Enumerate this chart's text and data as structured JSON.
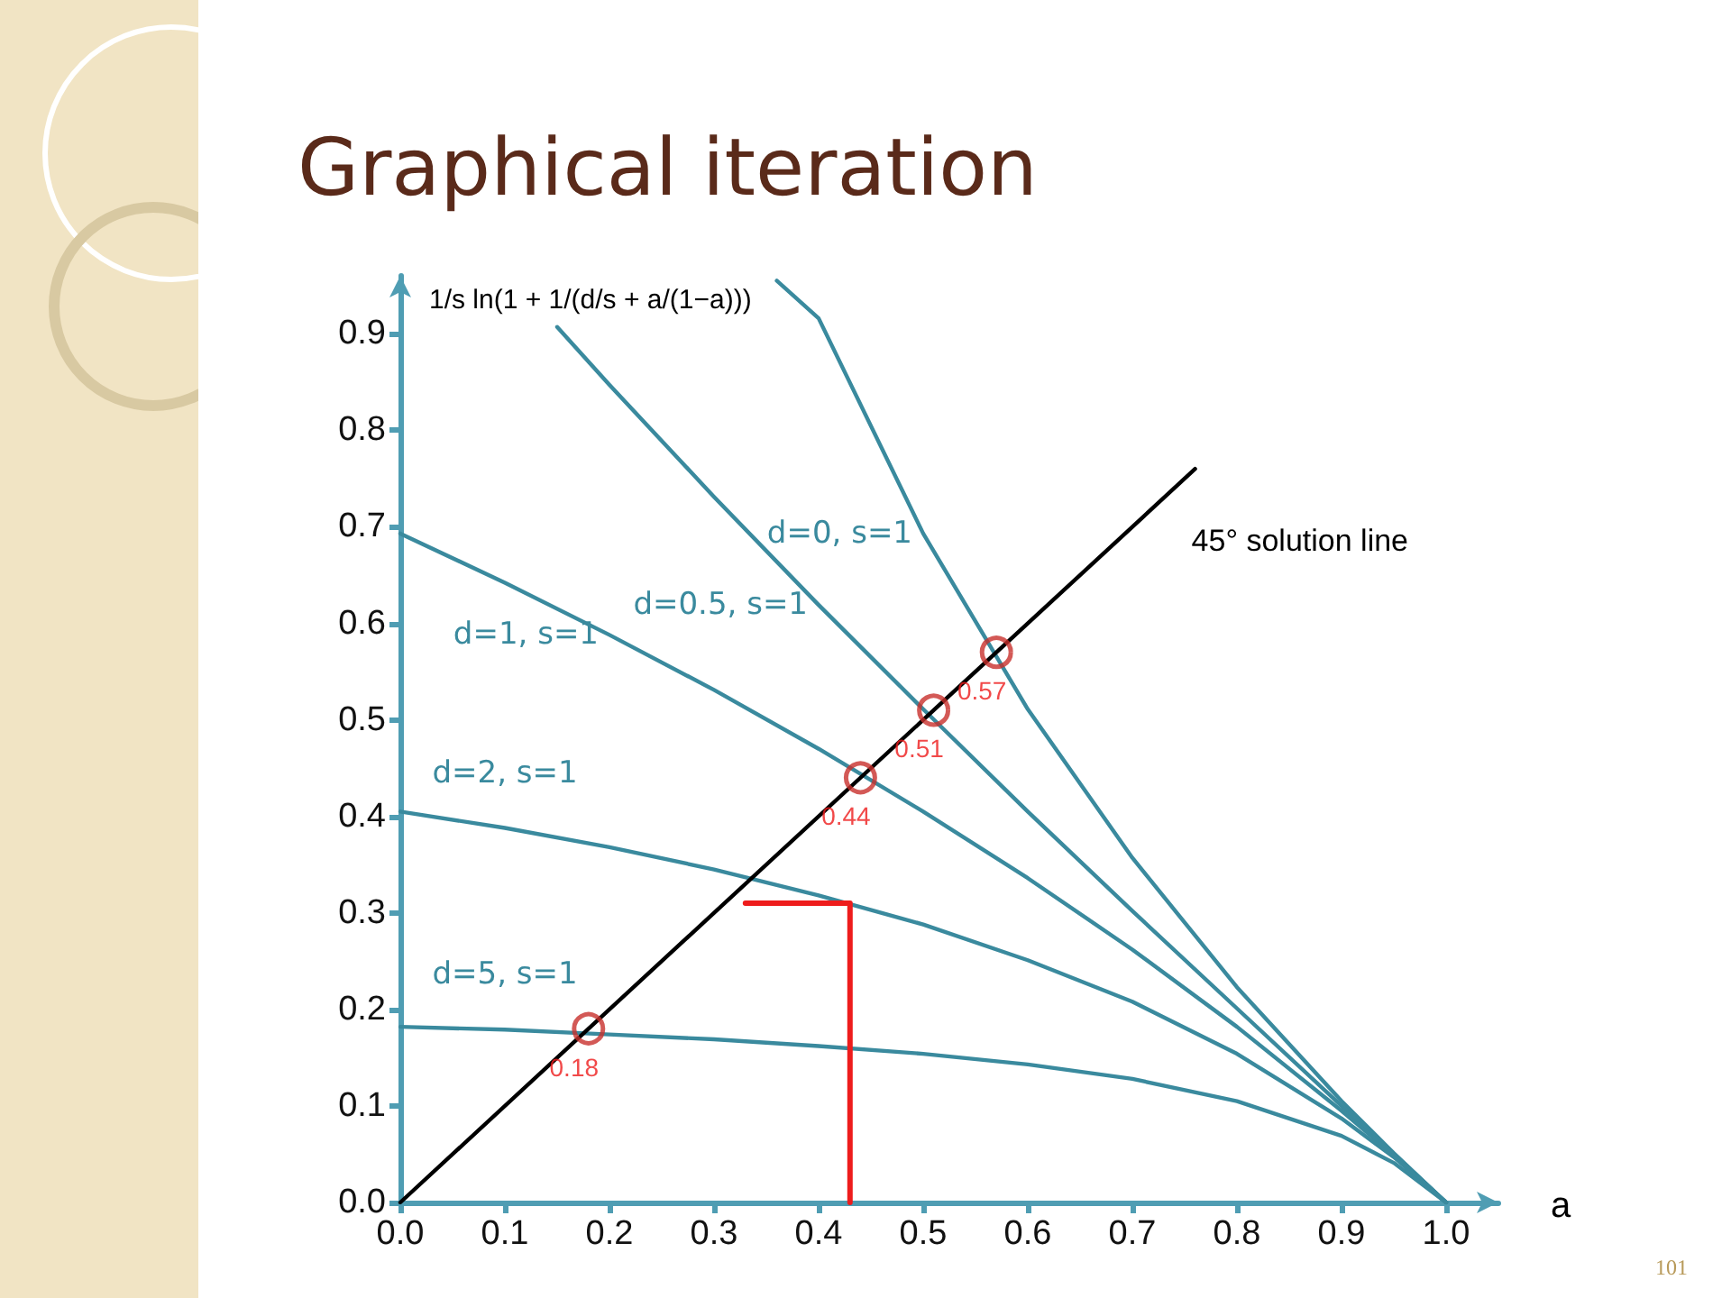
{
  "chart_data": {
    "type": "line",
    "title": "Graphical iteration",
    "xlabel": "a",
    "ylabel": "1/s ln(1 + 1/(d/s + a/(1−a)))",
    "annotations": [
      "101"
    ],
    "xlim": [
      0,
      1.05
    ],
    "ylim": [
      0,
      0.96
    ],
    "xticks": [
      {
        "value": 0,
        "label": "0.0"
      },
      {
        "value": 0.1,
        "label": "0.1"
      },
      {
        "value": 0.2,
        "label": "0.2"
      },
      {
        "value": 0.3,
        "label": "0.3"
      },
      {
        "value": 0.4,
        "label": "0.4"
      },
      {
        "value": 0.5,
        "label": "0.5"
      },
      {
        "value": 0.6,
        "label": "0.6"
      },
      {
        "value": 0.7,
        "label": "0.7"
      },
      {
        "value": 0.8,
        "label": "0.8"
      },
      {
        "value": 0.9,
        "label": "0.9"
      },
      {
        "value": 1,
        "label": "1.0"
      }
    ],
    "yticks": [
      {
        "value": 0,
        "label": "0.0"
      },
      {
        "value": 0.1,
        "label": "0.1"
      },
      {
        "value": 0.2,
        "label": "0.2"
      },
      {
        "value": 0.3,
        "label": "0.3"
      },
      {
        "value": 0.4,
        "label": "0.4"
      },
      {
        "value": 0.5,
        "label": "0.5"
      },
      {
        "value": 0.6,
        "label": "0.6"
      },
      {
        "value": 0.7,
        "label": "0.7"
      },
      {
        "value": 0.8,
        "label": "0.8"
      },
      {
        "value": 0.9,
        "label": "0.9"
      }
    ],
    "grid": false,
    "legend": false,
    "marker": "none",
    "line_style": "solid",
    "series": [
      {
        "name": "d=0, s=1",
        "color": "#3a8a9e",
        "x": [
          0.36,
          0.4,
          0.5,
          0.6,
          0.7,
          0.8,
          0.9,
          0.95,
          1
        ],
        "values": [
          0.955,
          0.916,
          0.693,
          0.511,
          0.357,
          0.223,
          0.105,
          0.051,
          0
        ]
      },
      {
        "name": "d=0.5, s=1",
        "color": "#3a8a9e",
        "x": [
          0.15,
          0.2,
          0.3,
          0.4,
          0.5,
          0.6,
          0.7,
          0.8,
          0.9,
          0.95,
          1
        ],
        "values": [
          0.907,
          0.847,
          0.731,
          0.619,
          0.511,
          0.405,
          0.302,
          0.201,
          0.1,
          0.05,
          0
        ]
      },
      {
        "name": "d=1, s=1",
        "color": "#3a8a9e",
        "x": [
          0,
          0.1,
          0.2,
          0.3,
          0.4,
          0.5,
          0.6,
          0.7,
          0.8,
          0.9,
          0.95,
          1
        ],
        "values": [
          0.693,
          0.642,
          0.588,
          0.531,
          0.47,
          0.405,
          0.336,
          0.262,
          0.182,
          0.095,
          0.049,
          0
        ]
      },
      {
        "name": "d=2, s=1",
        "color": "#3a8a9e",
        "x": [
          0,
          0.1,
          0.2,
          0.3,
          0.4,
          0.5,
          0.6,
          0.7,
          0.8,
          0.9,
          0.95,
          1
        ],
        "values": [
          0.405,
          0.388,
          0.368,
          0.345,
          0.318,
          0.288,
          0.251,
          0.208,
          0.154,
          0.087,
          0.047,
          0
        ]
      },
      {
        "name": "d=5, s=1",
        "color": "#3a8a9e",
        "x": [
          0,
          0.1,
          0.2,
          0.3,
          0.4,
          0.5,
          0.6,
          0.7,
          0.8,
          0.9,
          0.95,
          1
        ],
        "values": [
          0.182,
          0.179,
          0.174,
          0.169,
          0.162,
          0.154,
          0.143,
          0.128,
          0.105,
          0.069,
          0.041,
          0
        ]
      },
      {
        "name": "45° solution line",
        "color": "#000000",
        "x": [
          0,
          0.76
        ],
        "values": [
          0,
          0.76
        ]
      },
      {
        "color": "#ee1c1c",
        "x": [
          0.43,
          0.43,
          0.33
        ],
        "values": [
          0,
          0.31,
          0.31
        ]
      },
      {
        "type": "scatter",
        "marker": "circle",
        "color": "#c8302c",
        "x": [
          0.57,
          0.51,
          0.44,
          0.18
        ],
        "values": [
          0.57,
          0.51,
          0.44,
          0.18
        ],
        "value_labels": [
          "0.57",
          "0.51",
          "0.44",
          "0.18"
        ]
      }
    ]
  }
}
